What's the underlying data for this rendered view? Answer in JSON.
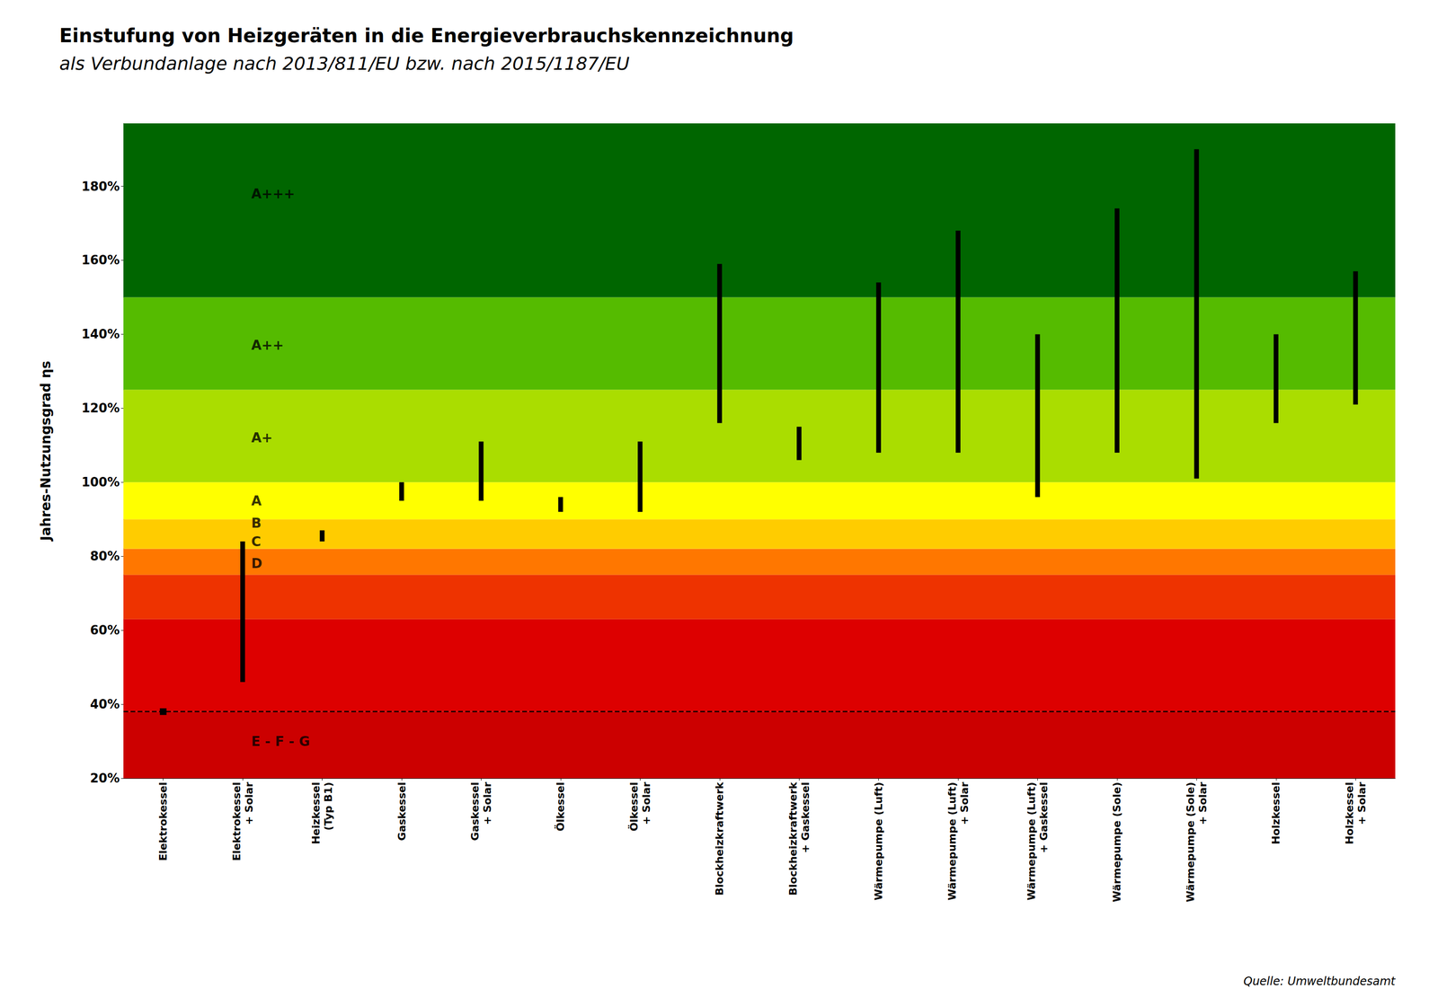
{
  "chart_data": {
    "type": "range_bar",
    "title": "Einstufung von Heizgeräten in die Energieverbrauchskennzeichnung",
    "subtitle": "als Verbundanlage nach 2013/811/EU bzw. nach 2015/1187/EU",
    "source": "Quelle: Umweltbundesamt",
    "ylabel": "Jahres-Nutzungsgrad ηs",
    "categories": [
      "Elektrokessel",
      "Elektrokessel\n+ Solar",
      "Heizkessel\n(Typ B1)",
      "Gaskessel",
      "Gaskessel\n+ Solar",
      "Ölkessel",
      "Ölkessel\n+ Solar",
      "Blockheizkraftwerk",
      "Blockheizkraftwerk\n+ Gaskessel",
      "Wärmepumpe (Luft)",
      "Wärmepumpe (Luft)\n+ Solar",
      "Wärmepumpe (Luft)\n+ Gaskessel",
      "Wärmepumpe (Sole)",
      "Wärmepumpe (Sole)\n+ Solar",
      "Holzkessel",
      "Holzkessel\n+ Solar"
    ],
    "low": [
      38,
      46,
      84,
      95,
      95,
      92,
      92,
      116,
      106,
      108,
      108,
      96,
      108,
      101,
      116,
      121
    ],
    "high": [
      38,
      84,
      87,
      100,
      111,
      96,
      111,
      159,
      115,
      154,
      168,
      140,
      174,
      190,
      140,
      157
    ],
    "color": "#000000",
    "ylim": [
      20,
      197
    ],
    "yticks": [
      {
        "value": 20,
        "label": "20%"
      },
      {
        "value": 40,
        "label": "40%"
      },
      {
        "value": 60,
        "label": "60%"
      },
      {
        "value": 80,
        "label": "80%"
      },
      {
        "value": 100,
        "label": "100%"
      },
      {
        "value": 120,
        "label": "120%"
      },
      {
        "value": 140,
        "label": "140%"
      },
      {
        "value": 160,
        "label": "160%"
      },
      {
        "value": 180,
        "label": "180%"
      }
    ],
    "grid": false,
    "reference_line": 38,
    "bands": [
      {
        "ymin": 20,
        "ymax": 38,
        "color": "#cc0000"
      },
      {
        "ymin": 38,
        "ymax": 63,
        "color": "#dd0000"
      },
      {
        "ymin": 63,
        "ymax": 75,
        "color": "#ee3300"
      },
      {
        "ymin": 75,
        "ymax": 82,
        "color": "#ff7700"
      },
      {
        "ymin": 82,
        "ymax": 90,
        "color": "#ffcc00"
      },
      {
        "ymin": 90,
        "ymax": 100,
        "color": "#ffff00"
      },
      {
        "ymin": 100,
        "ymax": 125,
        "color": "#aadd00"
      },
      {
        "ymin": 125,
        "ymax": 150,
        "color": "#55bb00"
      },
      {
        "ymin": 150,
        "ymax": 197,
        "color": "#006600"
      }
    ],
    "annotations": [
      {
        "text": "A+++",
        "y": 178
      },
      {
        "text": "A++",
        "y": 137
      },
      {
        "text": "A+",
        "y": 112
      },
      {
        "text": "A",
        "y": 95
      },
      {
        "text": "B",
        "y": 89
      },
      {
        "text": "C",
        "y": 84
      },
      {
        "text": "D",
        "y": 78
      },
      {
        "text": "E - F - G",
        "y": 30
      }
    ]
  }
}
